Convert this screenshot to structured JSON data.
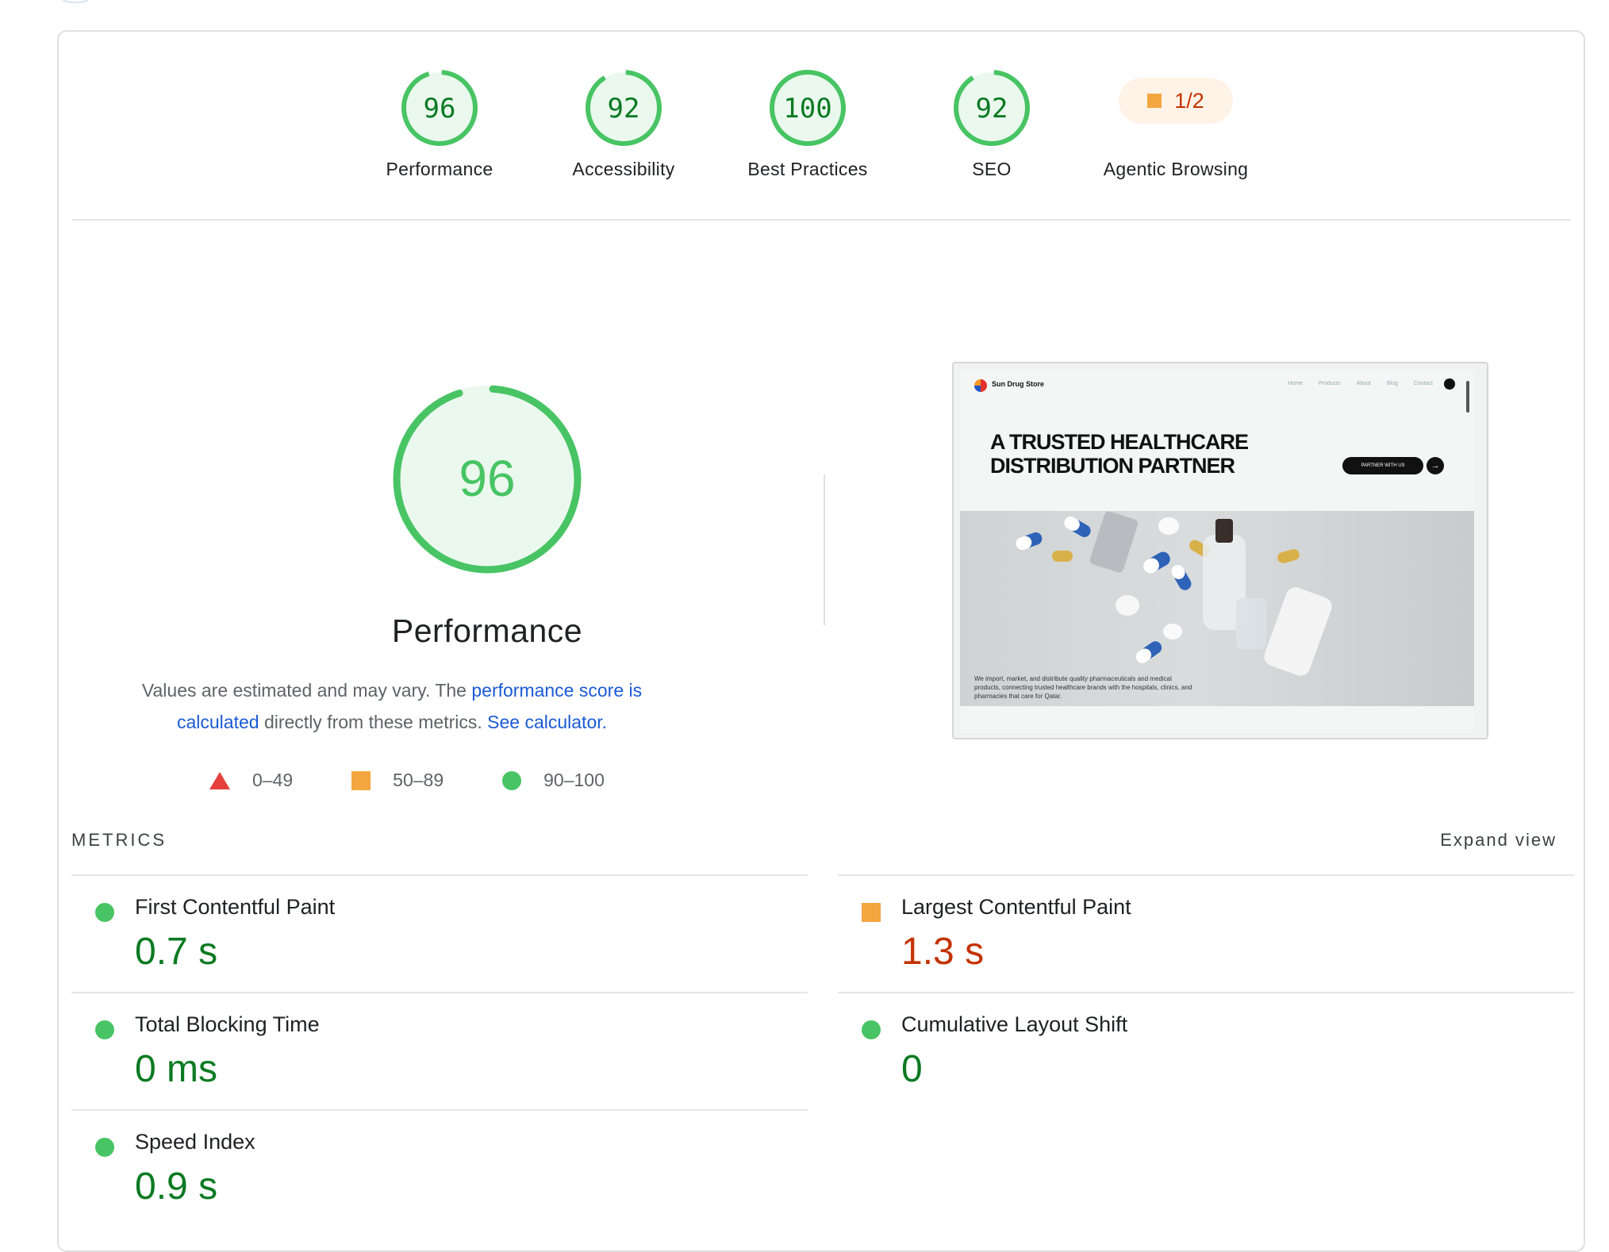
{
  "gauges": [
    {
      "score": "96",
      "label": "Performance",
      "fraction": 0.96
    },
    {
      "score": "92",
      "label": "Accessibility",
      "fraction": 0.92
    },
    {
      "score": "100",
      "label": "Best Practices",
      "fraction": 1.0
    },
    {
      "score": "92",
      "label": "SEO",
      "fraction": 0.92
    }
  ],
  "agentic": {
    "value": "1/2",
    "label": "Agentic Browsing"
  },
  "performance": {
    "score": "96",
    "fraction": 0.96,
    "title": "Performance",
    "desc_prefix": "Values are estimated and may vary. The ",
    "desc_link1": "performance score is calculated",
    "desc_middle": " directly from these metrics. ",
    "desc_link2": "See calculator."
  },
  "legend": {
    "fail": "0–49",
    "average": "50–89",
    "pass": "90–100"
  },
  "screenshot": {
    "brand": "Sun Drug Store",
    "nav": [
      "Home",
      "Products",
      "About",
      "Blog",
      "Contact"
    ],
    "hero_line1": "A TRUSTED HEALTHCARE",
    "hero_line2": "DISTRIBUTION PARTNER",
    "cta": "PARTNER WITH US",
    "caption": "We import, market, and distribute quality pharmaceuticals and medical products, connecting trusted healthcare brands with the hospitals, clinics, and pharmacies that care for Qatar."
  },
  "metrics_header": "METRICS",
  "expand_label": "Expand view",
  "metrics": {
    "fcp": {
      "name": "First Contentful Paint",
      "value": "0.7 s"
    },
    "lcp": {
      "name": "Largest Contentful Paint",
      "value": "1.3 s"
    },
    "tbt": {
      "name": "Total Blocking Time",
      "value": "0 ms"
    },
    "cls": {
      "name": "Cumulative Layout Shift",
      "value": "0"
    },
    "si": {
      "name": "Speed Index",
      "value": "0.9 s"
    }
  },
  "colors": {
    "pass": "#48c464",
    "average": "#f4a640",
    "fail": "#e6403a",
    "pass_text": "#0b7a22",
    "average_text": "#c33300",
    "link": "#1a5bd4"
  }
}
